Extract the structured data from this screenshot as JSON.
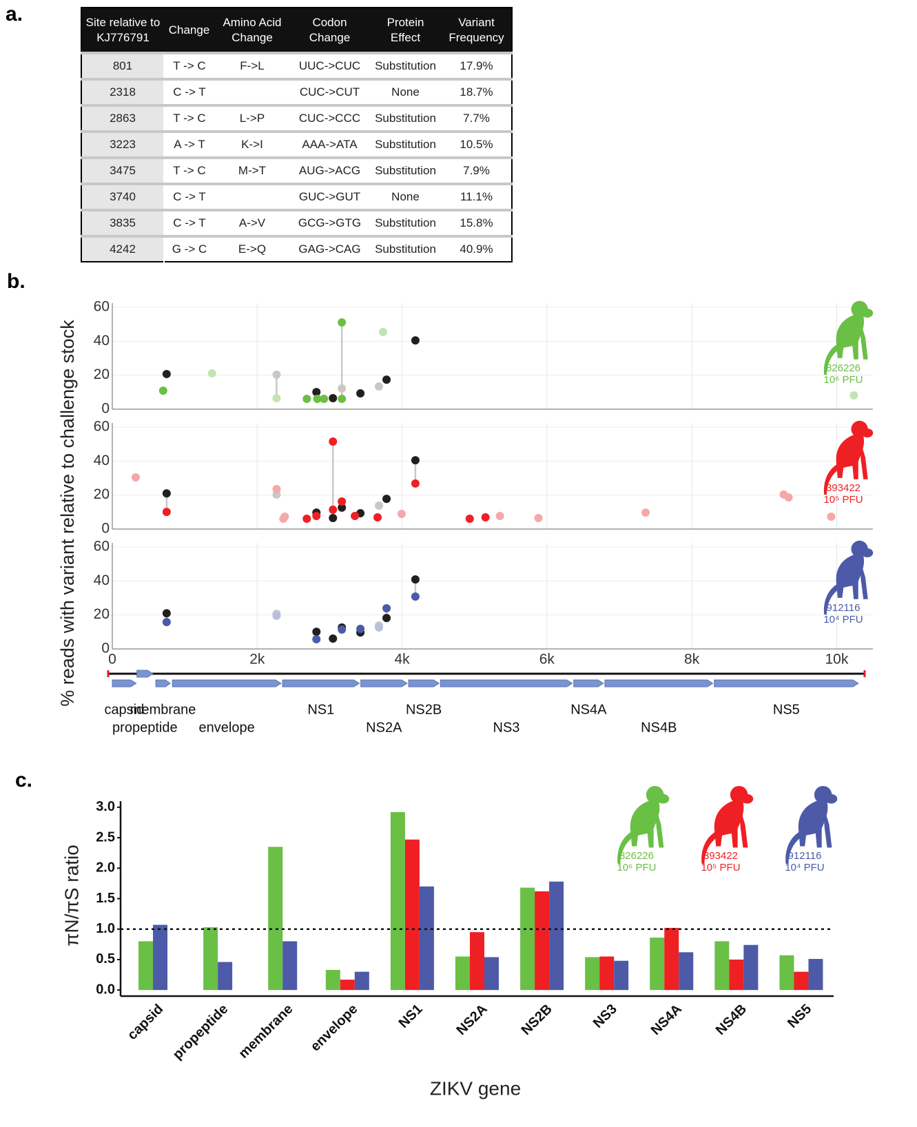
{
  "panel_labels": [
    "a.",
    "b.",
    "c."
  ],
  "table": {
    "columns": [
      "Site relative to KJ776791",
      "Change",
      "Amino Acid Change",
      "Codon Change",
      "Protein Effect",
      "Variant Frequency"
    ],
    "rows": [
      [
        "801",
        "T -> C",
        "F->L",
        "UUC->CUC",
        "Substitution",
        "17.9%"
      ],
      [
        "2318",
        "C -> T",
        null,
        "CUC->CUT",
        "None",
        "18.7%"
      ],
      [
        "2863",
        "T -> C",
        "L->P",
        "CUC->CCC",
        "Substitution",
        "7.7%"
      ],
      [
        "3223",
        "A -> T",
        "K->I",
        "AAA->ATA",
        "Substitution",
        "10.5%"
      ],
      [
        "3475",
        "T -> C",
        "M->T",
        "AUG->ACG",
        "Substitution",
        "7.9%"
      ],
      [
        "3740",
        "C -> T",
        null,
        "GUC->GUT",
        "None",
        "11.1%"
      ],
      [
        "3835",
        "C -> T",
        "A->V",
        "GCG->GTG",
        "Substitution",
        "15.8%"
      ],
      [
        "4242",
        "G -> C",
        "E->Q",
        "GAG->CAG",
        "Substitution",
        "40.9%"
      ]
    ]
  },
  "chart_data": [
    {
      "type": "scatter",
      "ylabel": "% reads with variant relative to challenge stock",
      "xlim": [
        0,
        10500
      ],
      "xticks": [
        0,
        {
          "value": 2000,
          "label": "2k"
        },
        {
          "value": 4000,
          "label": "4k"
        },
        {
          "value": 6000,
          "label": "6k"
        },
        {
          "value": 8000,
          "label": "8k"
        },
        {
          "value": 10000,
          "label": "10k"
        }
      ],
      "ylim": [
        0,
        60
      ],
      "yticks": [
        0,
        20,
        40,
        60
      ],
      "grid": true,
      "panels": [
        {
          "animal": {
            "id": "826226",
            "dose": "10⁶ PFU",
            "color": "#6abf45"
          },
          "series": [
            {
              "color": "#231f20",
              "x": [
                750,
                2818,
                3046,
                3425,
                3786,
                4184
              ],
              "values": [
                20.7,
                10.1,
                6.5,
                9.3,
                17.4,
                40.5
              ]
            },
            {
              "color": "#c8c8c8",
              "x": [
                2268,
                3169,
                3681
              ],
              "values": [
                20.3,
                12.2,
                13.4
              ]
            },
            {
              "color": "#6abf45",
              "x": [
                702,
                2685,
                2830,
                2922,
                3169,
                3169
              ],
              "values": [
                10.9,
                6.1,
                6.1,
                6.1,
                51.1,
                6.1
              ]
            },
            {
              "color": "#c3e4b1",
              "x": [
                1376,
                2268,
                3738,
                10237
              ],
              "values": [
                21.1,
                6.5,
                45.4,
                8.1
              ]
            }
          ]
        },
        {
          "animal": {
            "id": "393422",
            "dose": "10⁵ PFU",
            "color": "#ee2024"
          },
          "series": [
            {
              "color": "#231f20",
              "x": [
                750,
                2818,
                3046,
                3169,
                3425,
                3786,
                4184
              ],
              "values": [
                21,
                9.7,
                6.5,
                12.6,
                9.3,
                17.8,
                40.5
              ]
            },
            {
              "color": "#c8c8c8",
              "x": [
                2268,
                3681
              ],
              "values": [
                20.3,
                13.8
              ]
            },
            {
              "color": "#ee2024",
              "x": [
                750,
                2685,
                2818,
                3046,
                3046,
                3169,
                3349,
                3662,
                4184,
                4934,
                5152
              ],
              "values": [
                10.1,
                6.1,
                7.7,
                51.5,
                11.4,
                16.2,
                7.7,
                6.9,
                26.8,
                6.1,
                6.9
              ]
            },
            {
              "color": "#f5a8a9",
              "x": [
                323,
                2268,
                2362,
                2381,
                3994,
                5351,
                5882,
                7362,
                9269,
                9336,
                9924
              ],
              "values": [
                30.4,
                23.5,
                6.1,
                7.3,
                8.9,
                7.7,
                6.5,
                9.7,
                20.3,
                18.6,
                7.3
              ]
            }
          ]
        },
        {
          "animal": {
            "id": "912116",
            "dose": "10⁴ PFU",
            "color": "#4c5aa8"
          },
          "series": [
            {
              "color": "#231f20",
              "x": [
                750,
                2818,
                3046,
                3169,
                3425,
                3786,
                4184
              ],
              "values": [
                21,
                10.1,
                6.1,
                12.6,
                9.7,
                18.2,
                40.9
              ]
            },
            {
              "color": "#c8c8c8",
              "x": [
                2268,
                3681
              ],
              "values": [
                20.7,
                13.8
              ]
            },
            {
              "color": "#4c5aa8",
              "x": [
                750,
                2818,
                3169,
                3425,
                3786,
                4184
              ],
              "values": [
                15.8,
                5.7,
                11.4,
                11.8,
                23.9,
                30.8
              ]
            },
            {
              "color": "#b9bedf",
              "x": [
                2268,
                3681
              ],
              "values": [
                19.5,
                12.6
              ]
            }
          ]
        }
      ],
      "genes": [
        {
          "label": "capsid",
          "start": 0,
          "end": 330
        },
        {
          "label": "propeptide",
          "start": 340,
          "end": 560
        },
        {
          "label": "membrane",
          "start": 600,
          "end": 800
        },
        {
          "label": "envelope",
          "start": 830,
          "end": 2330
        },
        {
          "label": "NS1",
          "start": 2350,
          "end": 3410
        },
        {
          "label": "NS2A",
          "start": 3430,
          "end": 4070
        },
        {
          "label": "NS2B",
          "start": 4090,
          "end": 4510
        },
        {
          "label": "NS3",
          "start": 4530,
          "end": 6350
        },
        {
          "label": "NS4A",
          "start": 6370,
          "end": 6780
        },
        {
          "label": "NS4B",
          "start": 6800,
          "end": 8290
        },
        {
          "label": "NS5",
          "start": 8310,
          "end": 10300
        }
      ]
    },
    {
      "type": "bar",
      "xlabel": "ZIKV gene",
      "ylabel": "πN/πS ratio",
      "ylim": [
        -0.1,
        3.1
      ],
      "yticks": [
        {
          "value": 0,
          "label": "0.0"
        },
        0.5,
        {
          "value": 1,
          "label": "1.0"
        },
        1.5,
        {
          "value": 2,
          "label": "2.0"
        },
        2.5,
        {
          "value": 3,
          "label": "3.0"
        }
      ],
      "reference_line": 1,
      "categories": [
        "capsid",
        "propeptide",
        "membrane",
        "envelope",
        "NS1",
        "NS2A",
        "NS2B",
        "NS3",
        "NS4A",
        "NS4B",
        "NS5"
      ],
      "series": [
        {
          "color": "#6abf45",
          "values": [
            0.8,
            1.03,
            2.35,
            0.33,
            2.92,
            0.55,
            1.68,
            0.54,
            0.86,
            0.8,
            0.57
          ]
        },
        {
          "color": "#ee2024",
          "values": [
            null,
            null,
            null,
            0.17,
            2.47,
            0.95,
            1.62,
            0.55,
            1.02,
            0.5,
            0.3
          ]
        },
        {
          "color": "#4c5aa8",
          "values": [
            1.07,
            0.46,
            0.8,
            0.3,
            1.7,
            0.54,
            1.78,
            0.48,
            0.62,
            0.74,
            0.51
          ]
        }
      ],
      "animals": [
        {
          "id": "826226",
          "dose": "10⁶ PFU",
          "color": "#6abf45"
        },
        {
          "id": "393422",
          "dose": "10⁵ PFU",
          "color": "#ee2024"
        },
        {
          "id": "912116",
          "dose": "10⁴ PFU",
          "color": "#4c5aa8"
        }
      ]
    }
  ]
}
